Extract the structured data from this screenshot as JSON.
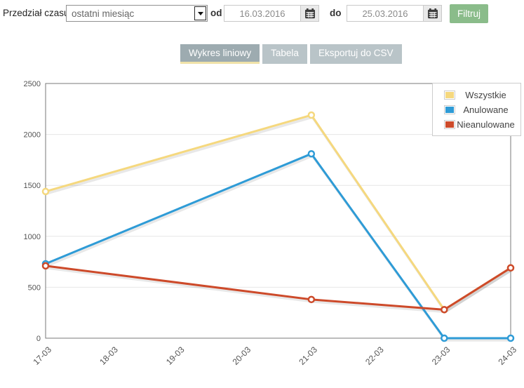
{
  "filters": {
    "label": "Przedział czasu",
    "range": {
      "value": "ostatni miesiąc"
    },
    "from": {
      "label": "od",
      "value": "16.03.2016"
    },
    "to": {
      "label": "do",
      "value": "25.03.2016"
    },
    "submit_label": "Filtruj"
  },
  "tabs": [
    {
      "label": "Wykres liniowy",
      "active": true
    },
    {
      "label": "Tabela",
      "active": false
    },
    {
      "label": "Eksportuj do CSV",
      "active": false
    }
  ],
  "colors": {
    "submit_green": "#8abc8a",
    "tab_active_bg": "#9dabb0",
    "tab_inactive_bg": "#b9c4c8",
    "tab_active_underline": "#f0e2a8",
    "series_yellow": "#f5d87e",
    "series_blue": "#2e9bd6",
    "series_red": "#cd4a2a"
  },
  "chart_data": {
    "type": "line",
    "title": "",
    "xlabel": "",
    "ylabel": "",
    "categories": [
      "17-03",
      "18-03",
      "19-03",
      "20-03",
      "21-03",
      "22-03",
      "23-03",
      "24-03"
    ],
    "yticks": [
      0,
      500,
      1000,
      1500,
      2000,
      2500
    ],
    "ylim": [
      0,
      2500
    ],
    "grid": true,
    "legend_position": "top-right",
    "series": [
      {
        "name": "Wszystkie",
        "color": "#f5d87e",
        "points": [
          {
            "x": "17-03",
            "y": 1440
          },
          {
            "x": "21-03",
            "y": 2190
          },
          {
            "x": "23-03",
            "y": 280
          },
          {
            "x": "24-03",
            "y": 690
          }
        ]
      },
      {
        "name": "Anulowane",
        "color": "#2e9bd6",
        "points": [
          {
            "x": "17-03",
            "y": 730
          },
          {
            "x": "21-03",
            "y": 1810
          },
          {
            "x": "23-03",
            "y": 0
          },
          {
            "x": "24-03",
            "y": 0
          }
        ]
      },
      {
        "name": "Nieanulowane",
        "color": "#cd4a2a",
        "points": [
          {
            "x": "17-03",
            "y": 710
          },
          {
            "x": "21-03",
            "y": 380
          },
          {
            "x": "23-03",
            "y": 280
          },
          {
            "x": "24-03",
            "y": 690
          }
        ]
      }
    ]
  }
}
